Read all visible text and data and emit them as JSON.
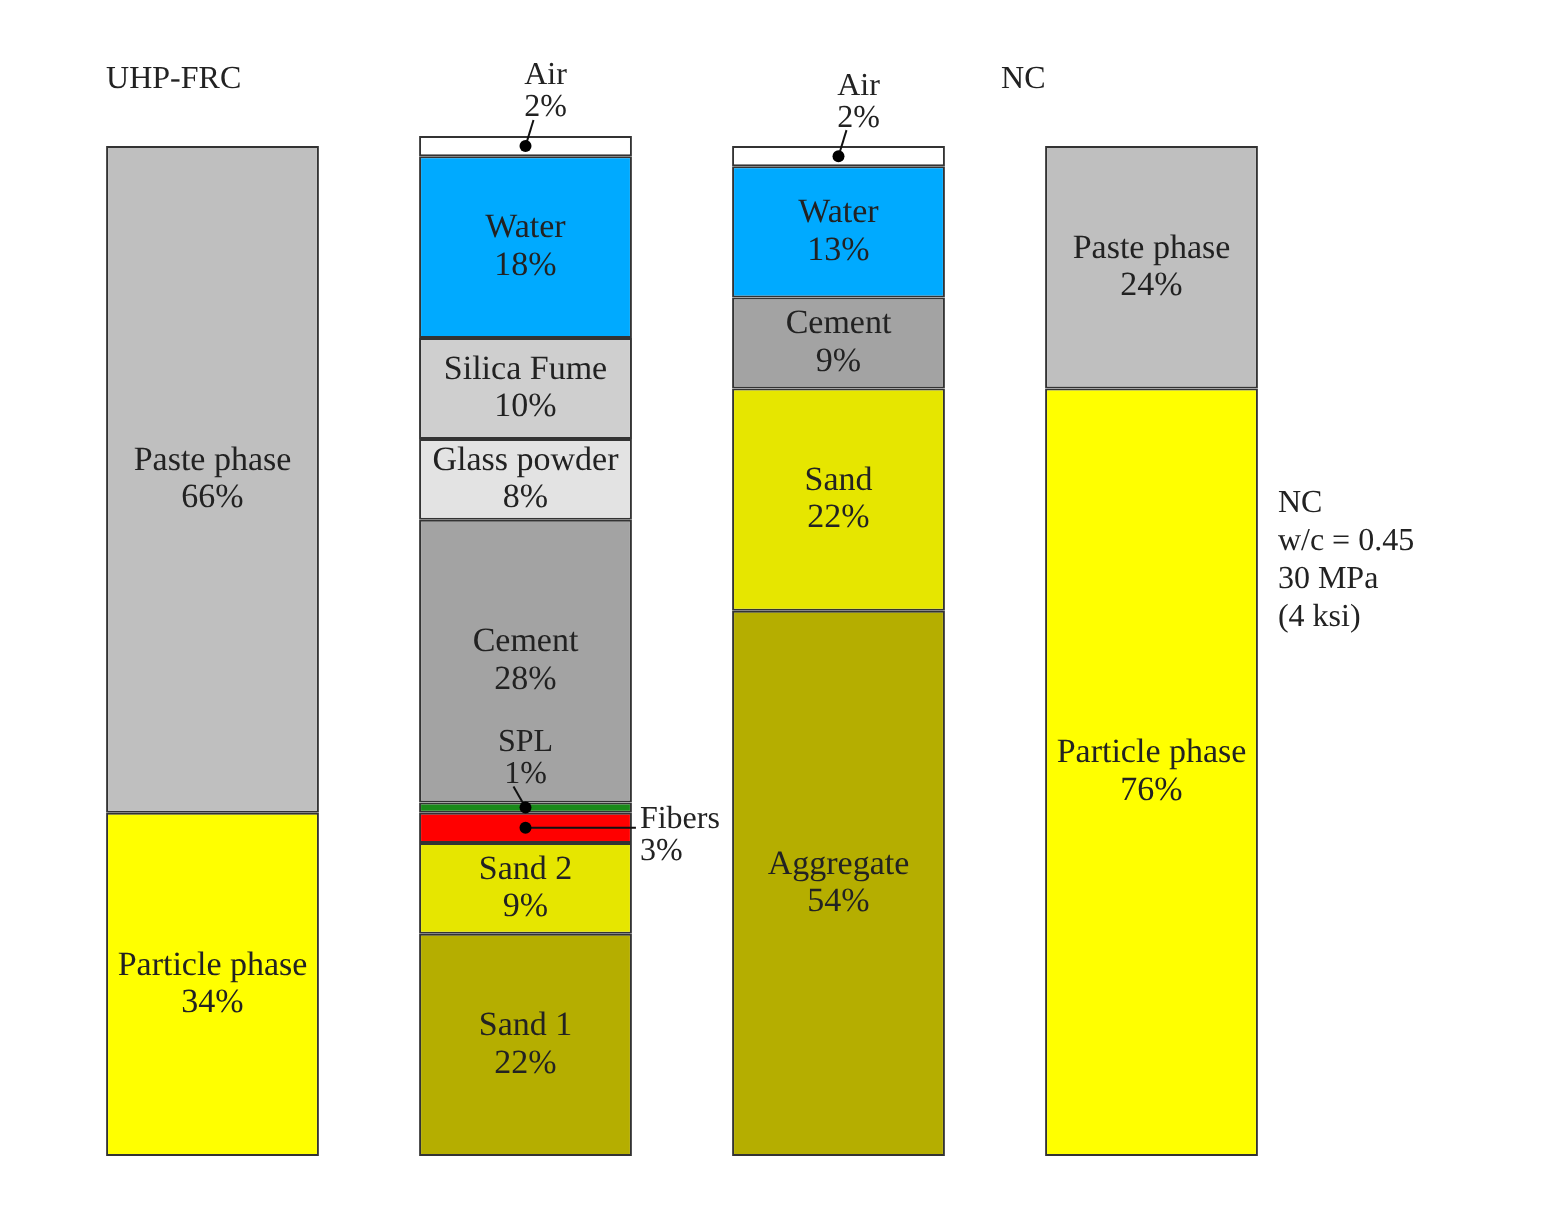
{
  "chart_data": {
    "type": "bar",
    "stacked": true,
    "categories": [
      null,
      null,
      null,
      null
    ],
    "legend": false,
    "tick_labels": false,
    "annotations": [
      "UHP-FRC",
      "NC",
      "NC\nw/c = 0.45\n30 MPa\n(4 ksi)"
    ],
    "series": [
      {
        "name": "Particle phase",
        "color": "#ffff00",
        "values": [
          34,
          null,
          null,
          76
        ],
        "value_labels": [
          "34%",
          null,
          null,
          "76%"
        ]
      },
      {
        "name": "Paste phase",
        "color": "#bfbfbf",
        "values": [
          66,
          null,
          null,
          24
        ],
        "value_labels": [
          "66%",
          null,
          null,
          "24%"
        ]
      },
      {
        "name": "Sand 1",
        "color": "#b5ae00",
        "values": [
          null,
          22,
          null,
          null
        ],
        "value_labels": [
          null,
          "22%",
          null,
          null
        ]
      },
      {
        "name": "Sand 2",
        "color": "#e6e600",
        "values": [
          null,
          9,
          null,
          null
        ],
        "value_labels": [
          null,
          "9%",
          null,
          null
        ]
      },
      {
        "name": "Fibers",
        "color": "#ff0000",
        "values": [
          null,
          3,
          null,
          null
        ],
        "value_labels": [
          null,
          "3%",
          null,
          null
        ]
      },
      {
        "name": "SPL",
        "color": "#1a8a1a",
        "values": [
          null,
          1,
          null,
          null
        ],
        "value_labels": [
          null,
          "1%",
          null,
          null
        ]
      },
      {
        "name": "Aggregate",
        "color": "#b5ae00",
        "values": [
          null,
          null,
          54,
          null
        ],
        "value_labels": [
          null,
          null,
          "54%",
          null
        ]
      },
      {
        "name": "Sand",
        "color": "#e6e600",
        "values": [
          null,
          null,
          22,
          null
        ],
        "value_labels": [
          null,
          null,
          "22%",
          null
        ]
      },
      {
        "name": "Cement",
        "color": "#a3a3a3",
        "values": [
          null,
          28,
          9,
          null
        ],
        "value_labels": [
          null,
          "28%",
          "9%",
          null
        ]
      },
      {
        "name": "Glass powder",
        "color": "#e3e3e3",
        "values": [
          null,
          8,
          null,
          null
        ],
        "value_labels": [
          null,
          "8%",
          null,
          null
        ]
      },
      {
        "name": "Silica Fume",
        "color": "#cfcfcf",
        "values": [
          null,
          10,
          null,
          null
        ],
        "value_labels": [
          null,
          "10%",
          null,
          null
        ]
      },
      {
        "name": "Water",
        "color": "#00aaff",
        "values": [
          null,
          18,
          13,
          null
        ],
        "value_labels": [
          null,
          "18%",
          "13%",
          null
        ]
      },
      {
        "name": "Air",
        "color": "#ffffff",
        "values": [
          null,
          2,
          2,
          null
        ],
        "value_labels": [
          null,
          "2%",
          "2%",
          null
        ]
      }
    ]
  }
}
